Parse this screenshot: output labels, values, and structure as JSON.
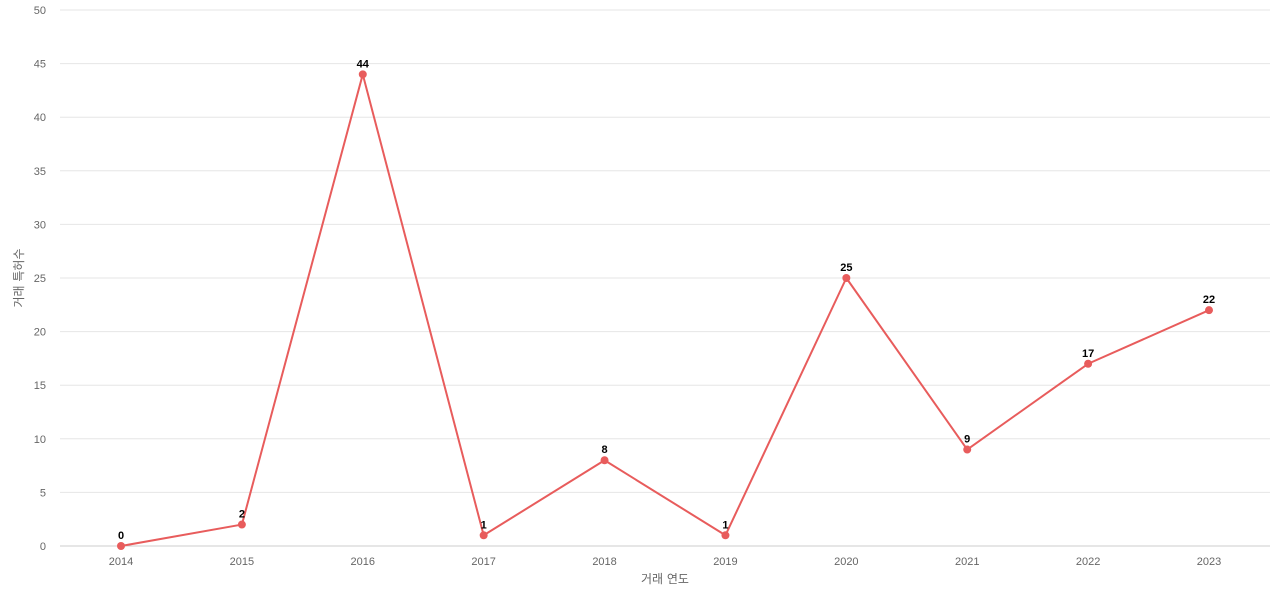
{
  "chart_data": {
    "type": "line",
    "title": "",
    "xlabel": "거래 연도",
    "ylabel": "거래 특허수",
    "categories": [
      "2014",
      "2015",
      "2016",
      "2017",
      "2018",
      "2019",
      "2020",
      "2021",
      "2022",
      "2023"
    ],
    "series": [
      {
        "values": [
          0,
          2,
          44,
          1,
          8,
          1,
          25,
          9,
          17,
          22
        ],
        "color": "#e85c5c"
      }
    ],
    "ylim": [
      0,
      50
    ],
    "yticks": [
      0,
      5,
      10,
      15,
      20,
      25,
      30,
      35,
      40,
      45,
      50
    ],
    "grid": true,
    "data_labels": true,
    "legend": "none"
  }
}
